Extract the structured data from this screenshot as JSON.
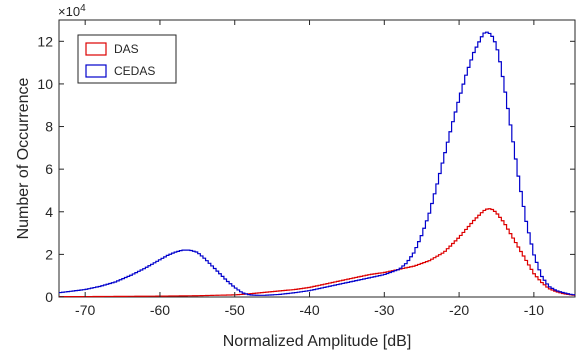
{
  "chart_data": {
    "type": "line",
    "title": "",
    "xlabel": "Normalized Amplitude [dB]",
    "ylabel": "Number of Occurrence",
    "y_exponent_label": "×10",
    "y_exponent_power": "4",
    "xlim": [
      -73.5,
      -4.5
    ],
    "ylim": [
      0,
      13
    ],
    "xticks": [
      -70,
      -60,
      -50,
      -40,
      -30,
      -20,
      -10
    ],
    "xtick_labels": [
      "-70",
      "-60",
      "-50",
      "-40",
      "-30",
      "-20",
      "-10"
    ],
    "yticks": [
      0,
      2,
      4,
      6,
      8,
      10,
      12
    ],
    "ytick_labels": [
      "0",
      "2",
      "4",
      "6",
      "8",
      "10",
      "12"
    ],
    "y_multiplier": 10000,
    "grid": false,
    "legend_position": "top-left",
    "line_style": "stairs",
    "series": [
      {
        "name": "DAS",
        "color": "#dd0000",
        "x": [
          -73.5,
          -70,
          -65,
          -60,
          -55,
          -50,
          -48,
          -45,
          -42,
          -40,
          -38,
          -36,
          -34,
          -32,
          -30,
          -28,
          -26,
          -24,
          -22,
          -20,
          -19,
          -18,
          -17,
          -16.5,
          -16,
          -15.5,
          -15,
          -14,
          -13,
          -12,
          -11,
          -10,
          -9,
          -8,
          -7,
          -6,
          -5,
          -4.5
        ],
        "y": [
          0.02,
          0.02,
          0.03,
          0.04,
          0.06,
          0.1,
          0.15,
          0.25,
          0.35,
          0.45,
          0.6,
          0.75,
          0.9,
          1.05,
          1.15,
          1.3,
          1.45,
          1.7,
          2.1,
          2.8,
          3.2,
          3.6,
          3.95,
          4.1,
          4.15,
          4.1,
          3.95,
          3.5,
          2.9,
          2.3,
          1.7,
          1.1,
          0.7,
          0.4,
          0.25,
          0.15,
          0.1,
          0.08
        ]
      },
      {
        "name": "CEDAS",
        "color": "#0000cc",
        "x": [
          -73.5,
          -70,
          -68,
          -66,
          -64,
          -62,
          -60,
          -59,
          -58,
          -57,
          -56,
          -55,
          -54,
          -53,
          -52,
          -51,
          -50,
          -49,
          -48,
          -47,
          -46,
          -44,
          -42,
          -40,
          -38,
          -36,
          -34,
          -32,
          -30,
          -28,
          -27,
          -26,
          -25,
          -24,
          -23,
          -22,
          -21,
          -20,
          -19,
          -18,
          -17,
          -16.5,
          -16,
          -15.5,
          -15,
          -14.5,
          -14,
          -13,
          -12,
          -11,
          -10,
          -9,
          -8,
          -7,
          -6,
          -5,
          -4.5
        ],
        "y": [
          0.2,
          0.35,
          0.5,
          0.7,
          1.0,
          1.35,
          1.75,
          1.95,
          2.1,
          2.2,
          2.2,
          2.1,
          1.8,
          1.45,
          1.1,
          0.75,
          0.45,
          0.2,
          0.1,
          0.08,
          0.08,
          0.12,
          0.2,
          0.3,
          0.45,
          0.6,
          0.75,
          0.9,
          1.05,
          1.3,
          1.6,
          2.1,
          2.9,
          3.9,
          5.2,
          6.6,
          8.0,
          9.3,
          10.5,
          11.5,
          12.2,
          12.45,
          12.4,
          12.2,
          11.8,
          11.0,
          10.0,
          7.8,
          5.5,
          3.5,
          2.0,
          1.0,
          0.5,
          0.3,
          0.2,
          0.12,
          0.1
        ]
      }
    ]
  }
}
